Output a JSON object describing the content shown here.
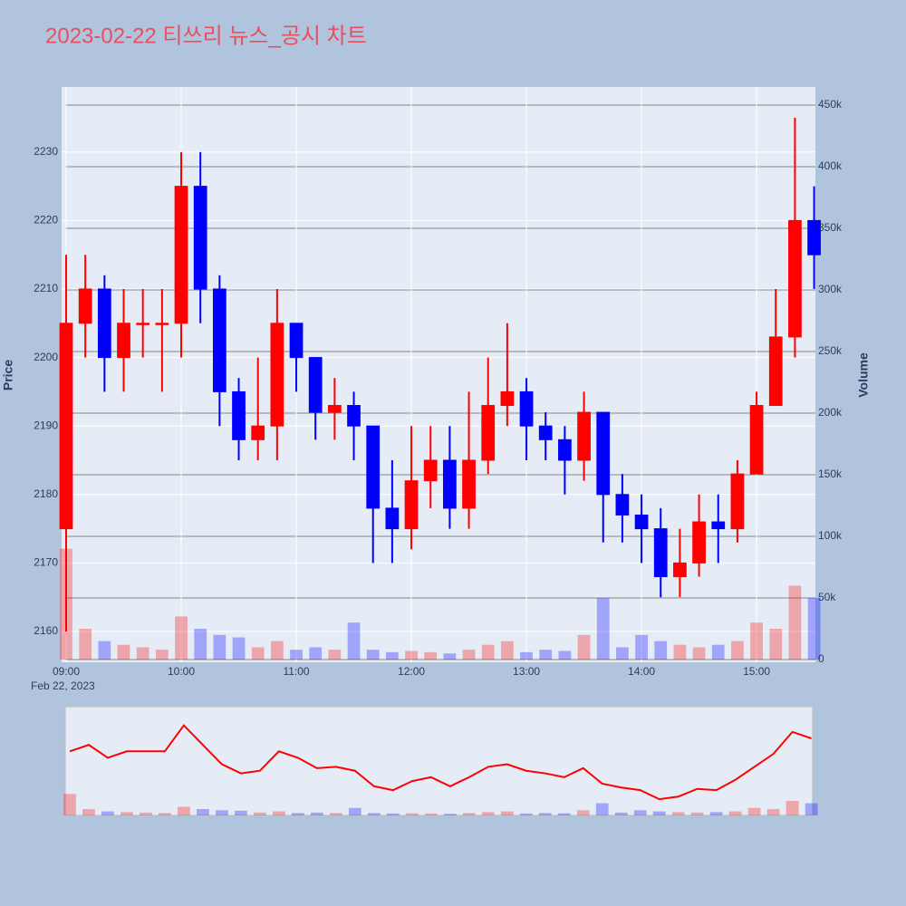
{
  "chart_data": {
    "type": "candlestick",
    "title": "2023-02-22 티쓰리 뉴스_공시 차트",
    "y_label": "Price",
    "y2_label": "Volume",
    "x_sublabel": "Feb 22, 2023",
    "increasing_color": "#ff0000",
    "decreasing_color": "#0000ff",
    "x": [
      "2023-02-22 09:00",
      "2023-02-22 09:10",
      "2023-02-22 09:20",
      "2023-02-22 09:30",
      "2023-02-22 09:40",
      "2023-02-22 09:50",
      "2023-02-22 10:00",
      "2023-02-22 10:10",
      "2023-02-22 10:20",
      "2023-02-22 10:30",
      "2023-02-22 10:40",
      "2023-02-22 10:50",
      "2023-02-22 11:00",
      "2023-02-22 11:10",
      "2023-02-22 11:20",
      "2023-02-22 11:30",
      "2023-02-22 11:40",
      "2023-02-22 11:50",
      "2023-02-22 12:00",
      "2023-02-22 12:10",
      "2023-02-22 12:20",
      "2023-02-22 12:30",
      "2023-02-22 12:40",
      "2023-02-22 12:50",
      "2023-02-22 13:00",
      "2023-02-22 13:10",
      "2023-02-22 13:20",
      "2023-02-22 13:30",
      "2023-02-22 13:40",
      "2023-02-22 13:50",
      "2023-02-22 14:00",
      "2023-02-22 14:10",
      "2023-02-22 14:20",
      "2023-02-22 14:30",
      "2023-02-22 14:40",
      "2023-02-22 14:50",
      "2023-02-22 15:00",
      "2023-02-22 15:10",
      "2023-02-22 15:20",
      "2023-02-22 15:30"
    ],
    "open": [
      2175,
      2205,
      2210,
      2200,
      2205,
      2205,
      2205,
      2225,
      2210,
      2195,
      2188,
      2190,
      2205,
      2200,
      2192,
      2193,
      2190,
      2178,
      2175,
      2182,
      2185,
      2178,
      2185,
      2193,
      2195,
      2190,
      2188,
      2185,
      2192,
      2180,
      2177,
      2175,
      2168,
      2170,
      2176,
      2175,
      2183,
      2193,
      2203,
      2220
    ],
    "high": [
      2215,
      2215,
      2212,
      2210,
      2210,
      2210,
      2230,
      2230,
      2212,
      2197,
      2200,
      2210,
      2205,
      2200,
      2197,
      2195,
      2190,
      2185,
      2190,
      2190,
      2190,
      2195,
      2200,
      2205,
      2197,
      2192,
      2190,
      2195,
      2192,
      2183,
      2180,
      2178,
      2175,
      2180,
      2180,
      2185,
      2195,
      2210,
      2235,
      2225
    ],
    "low": [
      2160,
      2200,
      2195,
      2195,
      2200,
      2195,
      2200,
      2205,
      2190,
      2185,
      2185,
      2185,
      2195,
      2188,
      2188,
      2185,
      2170,
      2170,
      2172,
      2178,
      2175,
      2175,
      2183,
      2190,
      2185,
      2185,
      2180,
      2182,
      2173,
      2173,
      2170,
      2165,
      2165,
      2168,
      2170,
      2173,
      2183,
      2193,
      2200,
      2210
    ],
    "close": [
      2205,
      2210,
      2200,
      2205,
      2205,
      2205,
      2225,
      2210,
      2195,
      2188,
      2190,
      2205,
      2200,
      2192,
      2193,
      2190,
      2178,
      2175,
      2182,
      2185,
      2178,
      2185,
      2193,
      2195,
      2190,
      2188,
      2185,
      2192,
      2180,
      2177,
      2175,
      2168,
      2170,
      2176,
      2175,
      2183,
      2193,
      2203,
      2220,
      2215
    ],
    "volume": [
      90000,
      25000,
      15000,
      12000,
      10000,
      8000,
      35000,
      25000,
      20000,
      18000,
      10000,
      15000,
      8000,
      10000,
      8000,
      30000,
      8000,
      6000,
      7000,
      6000,
      5000,
      8000,
      12000,
      15000,
      6000,
      8000,
      7000,
      20000,
      50000,
      10000,
      20000,
      15000,
      12000,
      10000,
      12000,
      15000,
      30000,
      25000,
      60000,
      50000
    ],
    "xlim": [
      "2023-02-22 08:57:38",
      "2023-02-22 15:30:40"
    ],
    "xticks": [
      {
        "value": "2023-02-22 09:00",
        "label": "09:00"
      },
      {
        "value": "2023-02-22 10:00",
        "label": "10:00"
      },
      {
        "value": "2023-02-22 11:00",
        "label": "11:00"
      },
      {
        "value": "2023-02-22 12:00",
        "label": "12:00"
      },
      {
        "value": "2023-02-22 13:00",
        "label": "13:00"
      },
      {
        "value": "2023-02-22 14:00",
        "label": "14:00"
      },
      {
        "value": "2023-02-22 15:00",
        "label": "15:00"
      }
    ],
    "ylim": [
      2155.5,
      2239.5
    ],
    "yticks": [
      2160,
      2170,
      2180,
      2190,
      2200,
      2210,
      2220,
      2230
    ],
    "y2lim": [
      -2200,
      464700
    ],
    "y2ticks": [
      0,
      {
        "value": 50000,
        "label": "50k"
      },
      {
        "value": 100000,
        "label": "100k"
      },
      {
        "value": 150000,
        "label": "150k"
      },
      {
        "value": 200000,
        "label": "200k"
      },
      {
        "value": 250000,
        "label": "250k"
      },
      {
        "value": 300000,
        "label": "300k"
      },
      {
        "value": 350000,
        "label": "350k"
      },
      {
        "value": 400000,
        "label": "400k"
      },
      {
        "value": 450000,
        "label": "450k"
      }
    ],
    "grid": true
  }
}
